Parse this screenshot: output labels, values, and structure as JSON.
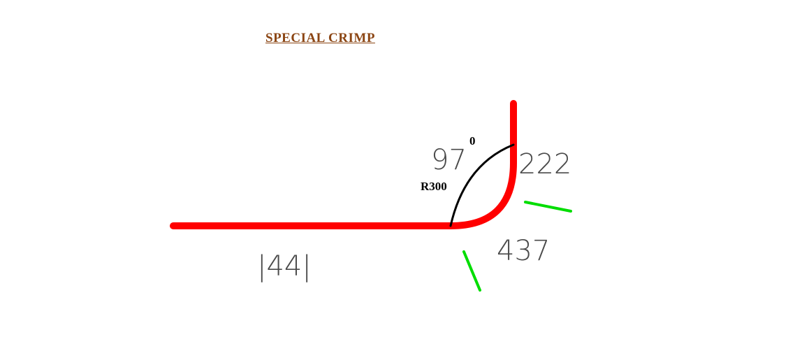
{
  "title": "SPECIAL CRIMP",
  "labels": {
    "bottom_length": "|44|",
    "angle": "97",
    "angle_unit": "0",
    "radius": "R300",
    "vertical_length": "222",
    "bend_dimension": "437"
  },
  "colors": {
    "profile": "#ff0000",
    "arc": "#000000",
    "leaders": "#00dd00",
    "title": "#8B4513"
  }
}
